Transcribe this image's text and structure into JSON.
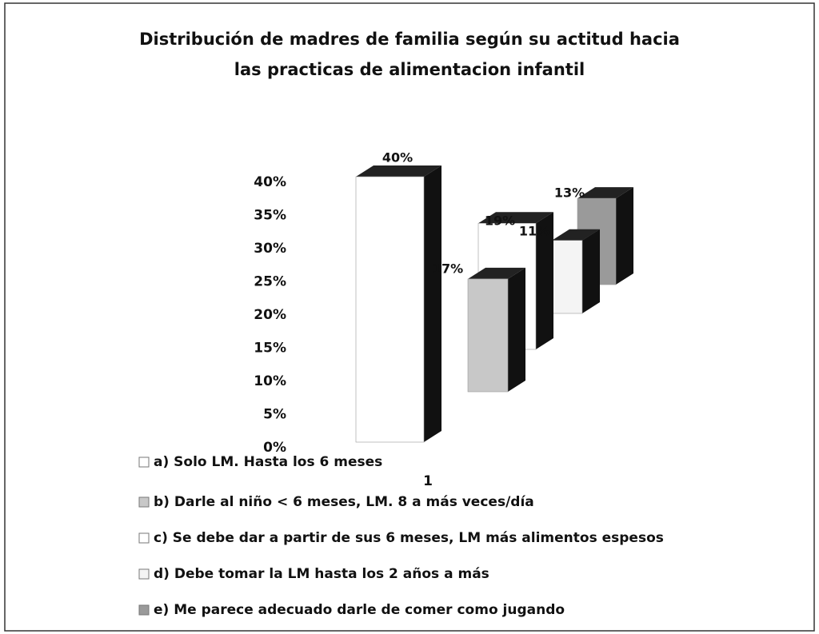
{
  "chart_data": {
    "type": "bar3d",
    "title": "Distribución de madres de familia según su actitud hacia las practicas de alimentacion infantil",
    "categories": [
      "1"
    ],
    "ylim": [
      0,
      40
    ],
    "yticks": [
      {
        "value": 0,
        "label": "0%"
      },
      {
        "value": 5,
        "label": "5%"
      },
      {
        "value": 10,
        "label": "10%"
      },
      {
        "value": 15,
        "label": "15%"
      },
      {
        "value": 20,
        "label": "20%"
      },
      {
        "value": 25,
        "label": "25%"
      },
      {
        "value": 30,
        "label": "30%"
      },
      {
        "value": 35,
        "label": "35%"
      },
      {
        "value": 40,
        "label": "40%"
      }
    ],
    "series": [
      {
        "name": "a)  Solo LM. Hasta los 6 meses",
        "color": "#ffffff",
        "values": [
          40
        ],
        "value_labels": [
          "40%"
        ]
      },
      {
        "name": "b) Darle al niño < 6 meses, LM.  8 a más veces/día",
        "color": "#c8c8c8",
        "values": [
          17
        ],
        "value_labels": [
          "17%"
        ]
      },
      {
        "name": "c) Se debe dar a partir de sus 6 meses, LM más alimentos espesos",
        "color": "#ffffff",
        "values": [
          19
        ],
        "value_labels": [
          "19%"
        ]
      },
      {
        "name": "d) Debe tomar la LM hasta los 2 años a más",
        "color": "#f4f4f4",
        "values": [
          11
        ],
        "value_labels": [
          "11%"
        ]
      },
      {
        "name": "e) Me parece adecuado darle de comer como jugando",
        "color": "#9a9a9a",
        "values": [
          13
        ],
        "value_labels": [
          "13%"
        ]
      }
    ]
  }
}
